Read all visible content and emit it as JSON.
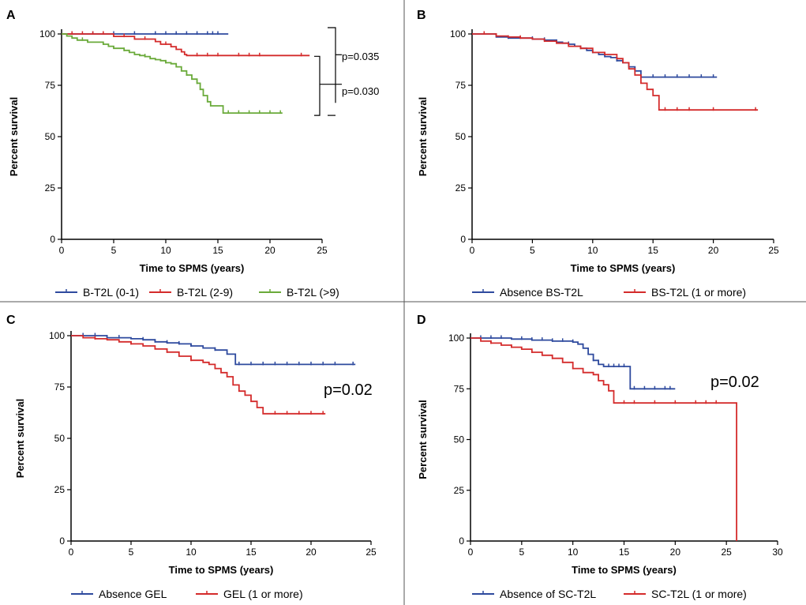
{
  "chart_data": [
    {
      "panel_label": "A",
      "type": "line",
      "subtype": "kaplan-meier",
      "title": "",
      "xlabel": "Time to SPMS (years)",
      "ylabel": "Percent survival",
      "xlim": [
        0,
        25
      ],
      "ylim": [
        0,
        100
      ],
      "xticks": [
        0,
        5,
        10,
        15,
        20,
        25
      ],
      "yticks": [
        0,
        25,
        50,
        75,
        100
      ],
      "series": [
        {
          "name": "B-T2L (0-1)",
          "color": "#2e4a9e",
          "x": [
            0,
            16
          ],
          "y": [
            100,
            100
          ],
          "censor_x": [
            3,
            5,
            7,
            9,
            10,
            11,
            12,
            13,
            14,
            14.5,
            15
          ]
        },
        {
          "name": "B-T2L (2-9)",
          "color": "#d42b2b",
          "x": [
            0,
            5,
            7,
            9,
            9.5,
            10.5,
            11,
            11.5,
            11.8,
            12,
            23.8
          ],
          "y": [
            100,
            98.8,
            97.5,
            96.3,
            95,
            93.8,
            92.5,
            91.3,
            90,
            89.5,
            89.5
          ],
          "censor_x": [
            1,
            2,
            3,
            4,
            6,
            8,
            10,
            13,
            14,
            15,
            17,
            18,
            19,
            23
          ]
        },
        {
          "name": "B-T2L (>9)",
          "color": "#6aaa3a",
          "x": [
            0,
            0.5,
            1,
            1.5,
            2,
            2.5,
            3,
            4,
            4.5,
            5,
            5.5,
            6,
            6.5,
            7,
            7.5,
            8,
            8.5,
            9,
            9.5,
            10,
            10.5,
            11,
            11.5,
            12,
            12.5,
            13,
            13.3,
            13.6,
            14,
            14.3,
            15.5,
            21.2
          ],
          "y": [
            100,
            99,
            98,
            97,
            97,
            96,
            96,
            95,
            94,
            93,
            93,
            92,
            91,
            90,
            89.5,
            89,
            88,
            87.5,
            87,
            86,
            85.5,
            84,
            82,
            80,
            78,
            76,
            73,
            70,
            67,
            65,
            61.5,
            61.5
          ],
          "censor_x": [
            2,
            4,
            6,
            8,
            10,
            12,
            13,
            16,
            17,
            18,
            19,
            20,
            21
          ]
        }
      ],
      "annotations": [
        "p=0.035",
        "p=0.030"
      ]
    },
    {
      "panel_label": "B",
      "type": "line",
      "subtype": "kaplan-meier",
      "title": "",
      "xlabel": "Time to SPMS (years)",
      "ylabel": "Percent survival",
      "xlim": [
        0,
        25
      ],
      "ylim": [
        0,
        100
      ],
      "xticks": [
        0,
        5,
        10,
        15,
        20,
        25
      ],
      "yticks": [
        0,
        25,
        50,
        75,
        100
      ],
      "series": [
        {
          "name": "Absence BS-T2L",
          "color": "#2e4a9e",
          "x": [
            0,
            2,
            3,
            4,
            5,
            6,
            7,
            7.5,
            8,
            8.5,
            9,
            9.5,
            10,
            10.5,
            11,
            11.5,
            12,
            12.5,
            13,
            13.5,
            14,
            20.3
          ],
          "y": [
            100,
            98.5,
            98,
            98,
            97.5,
            97,
            96,
            95.5,
            95,
            94,
            93,
            92,
            91,
            90,
            89,
            88.5,
            87,
            86,
            84,
            82,
            79,
            79
          ],
          "censor_x": [
            3,
            5,
            6,
            7,
            8,
            9,
            10,
            11,
            12,
            13,
            15,
            16,
            17,
            18,
            19,
            20
          ]
        },
        {
          "name": "BS-T2L (1 or more)",
          "color": "#d42b2b",
          "x": [
            0,
            2,
            3,
            4,
            5,
            6,
            7,
            8,
            9,
            10,
            11,
            12,
            12.5,
            13,
            13.5,
            14,
            14.5,
            15,
            15.5,
            23.7
          ],
          "y": [
            100,
            99,
            98.5,
            98,
            97.5,
            96.5,
            95.5,
            94,
            93,
            91,
            90,
            88,
            86,
            83,
            80,
            76,
            73,
            70,
            63,
            63
          ],
          "censor_x": [
            1,
            2,
            4,
            6,
            9,
            11,
            16,
            17,
            18,
            20,
            23.5
          ]
        }
      ]
    },
    {
      "panel_label": "C",
      "type": "line",
      "subtype": "kaplan-meier",
      "title": "",
      "xlabel": "Time to SPMS (years)",
      "ylabel": "Percent survival",
      "xlim": [
        0,
        25
      ],
      "ylim": [
        0,
        100
      ],
      "xticks": [
        0,
        5,
        10,
        15,
        20,
        25
      ],
      "yticks": [
        0,
        25,
        50,
        75,
        100
      ],
      "series": [
        {
          "name": "Absence GEL",
          "color": "#2e4a9e",
          "x": [
            0,
            3,
            5,
            6,
            7,
            8,
            9,
            10,
            11,
            12,
            13,
            13.7,
            23.7
          ],
          "y": [
            100,
            99,
            98.5,
            98,
            97,
            96.5,
            96,
            95,
            94,
            93,
            91,
            86,
            86
          ],
          "censor_x": [
            1,
            2,
            3,
            4,
            6,
            7,
            8,
            9,
            10,
            12,
            14,
            15,
            16,
            17,
            18,
            19,
            20,
            21,
            22,
            23.5
          ]
        },
        {
          "name": "GEL (1 or more)",
          "color": "#d42b2b",
          "x": [
            0,
            1,
            2,
            3,
            4,
            5,
            6,
            7,
            8,
            9,
            10,
            11,
            11.5,
            12,
            12.5,
            13,
            13.5,
            14,
            14.5,
            15,
            15.5,
            16,
            21.2
          ],
          "y": [
            100,
            99,
            98.5,
            98,
            97,
            96,
            95,
            93.5,
            92,
            90,
            88,
            87,
            86,
            84,
            82,
            80,
            76,
            73,
            71,
            68,
            65,
            62,
            62
          ],
          "censor_x": [
            2,
            5,
            8,
            10,
            17,
            18,
            19,
            20,
            21
          ]
        }
      ],
      "annotations": [
        "p=0.02"
      ]
    },
    {
      "panel_label": "D",
      "type": "line",
      "subtype": "kaplan-meier",
      "title": "",
      "xlabel": "Time to SPMS (years)",
      "ylabel": "Percent survival",
      "xlim": [
        0,
        30
      ],
      "ylim": [
        0,
        100
      ],
      "xticks": [
        0,
        5,
        10,
        15,
        20,
        25,
        30
      ],
      "yticks": [
        0,
        25,
        50,
        75,
        100
      ],
      "series": [
        {
          "name": "Absence of SC-T2L",
          "color": "#2e4a9e",
          "x": [
            0,
            4,
            6,
            8,
            10,
            10.5,
            11,
            11.5,
            12,
            12.5,
            13,
            15.5,
            15.6,
            20
          ],
          "y": [
            100,
            99.5,
            99,
            98.5,
            98,
            97,
            95,
            92,
            89,
            87,
            86,
            86,
            75,
            75
          ],
          "censor_x": [
            1,
            2,
            3,
            5,
            6,
            7,
            8,
            9,
            10,
            12,
            13.5,
            14,
            14.5,
            15,
            16,
            17,
            18,
            19,
            19.5
          ]
        },
        {
          "name": "SC-T2L (1 or more)",
          "color": "#d42b2b",
          "x": [
            0,
            1,
            2,
            3,
            4,
            5,
            6,
            7,
            8,
            9,
            10,
            11,
            12,
            12.5,
            13,
            13.5,
            14,
            26,
            26
          ],
          "y": [
            100,
            98.5,
            97.5,
            96.5,
            95.5,
            94.5,
            93,
            91.5,
            90,
            88,
            85,
            83,
            82,
            79,
            77,
            74,
            68,
            68,
            0
          ],
          "censor_x": [
            2,
            4,
            6,
            8,
            10,
            15,
            16,
            18,
            20,
            22,
            23,
            24
          ]
        }
      ],
      "annotations": [
        "p=0.02"
      ]
    }
  ]
}
